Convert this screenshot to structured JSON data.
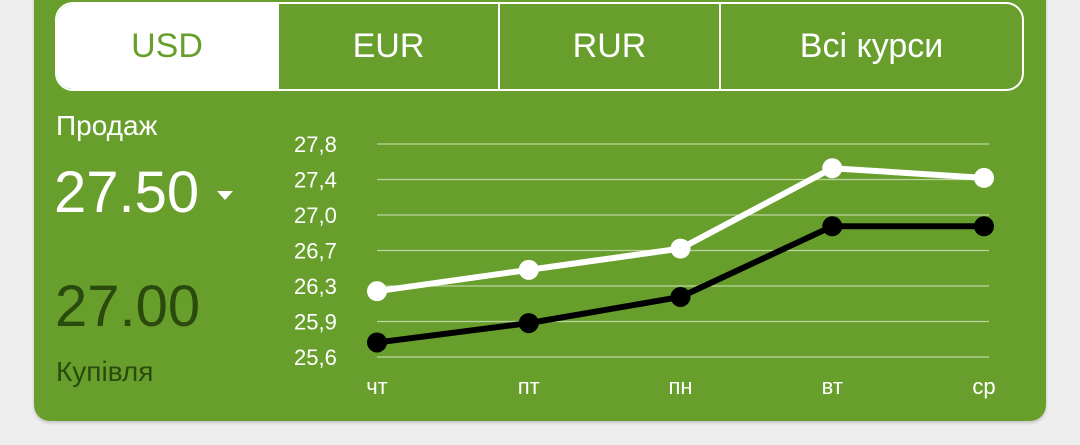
{
  "tabs": [
    {
      "label": "USD",
      "active": true
    },
    {
      "label": "EUR",
      "active": false
    },
    {
      "label": "RUR",
      "active": false
    },
    {
      "label": "Всі курси",
      "active": false
    }
  ],
  "sell": {
    "label": "Продаж",
    "value": "27.50",
    "trend": "down"
  },
  "buy": {
    "label": "Купівля",
    "value": "27.00"
  },
  "colors": {
    "background": "#689f2c",
    "sell_line": "#ffffff",
    "buy_line": "#000000",
    "buy_text": "#2a4a0e"
  },
  "chart_data": {
    "type": "line",
    "categories": [
      "чт",
      "пт",
      "пн",
      "вт",
      "ср"
    ],
    "yticks": [
      "27,8",
      "27,4",
      "27,0",
      "26,7",
      "26,3",
      "25,9",
      "25,6"
    ],
    "ylim": [
      25.6,
      27.8
    ],
    "grid": true,
    "series": [
      {
        "key": "sell",
        "values": [
          26.28,
          26.5,
          26.72,
          27.55,
          27.45
        ],
        "color": "#ffffff"
      },
      {
        "key": "buy",
        "values": [
          25.75,
          25.95,
          26.22,
          26.95,
          26.95
        ],
        "color": "#000000"
      }
    ]
  }
}
